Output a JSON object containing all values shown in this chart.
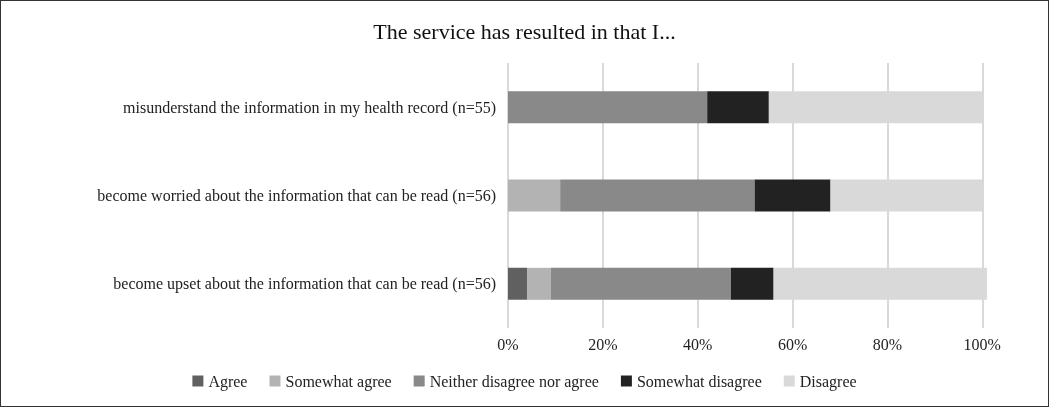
{
  "chart_data": {
    "type": "bar",
    "orientation": "horizontal",
    "stacked": true,
    "title": "The service has resulted in that I...",
    "categories": [
      "misunderstand the information in my health record (n=55)",
      "become worried about the information that can be read (n=56)",
      "become upset about the information that can be read (n=56)"
    ],
    "series": [
      {
        "name": "Agree",
        "color": "#606060",
        "values": [
          0,
          0,
          4
        ]
      },
      {
        "name": "Somewhat agree",
        "color": "#b3b3b3",
        "values": [
          0,
          11,
          5
        ]
      },
      {
        "name": "Neither disagree nor agree",
        "color": "#898989",
        "values": [
          42,
          41,
          38
        ]
      },
      {
        "name": "Somewhat disagree",
        "color": "#222222",
        "values": [
          13,
          16,
          9
        ]
      },
      {
        "name": "Disagree",
        "color": "#d9d9d9",
        "values": [
          45,
          32,
          45
        ]
      }
    ],
    "xlim": [
      0,
      101
    ],
    "xticks": [
      {
        "value": 0,
        "label": "0%"
      },
      {
        "value": 20,
        "label": "20%"
      },
      {
        "value": 40,
        "label": "40%"
      },
      {
        "value": 60,
        "label": "60%"
      },
      {
        "value": 80,
        "label": "80%"
      },
      {
        "value": 100,
        "label": "100%"
      }
    ],
    "grid": "x",
    "legend": "bottom"
  }
}
